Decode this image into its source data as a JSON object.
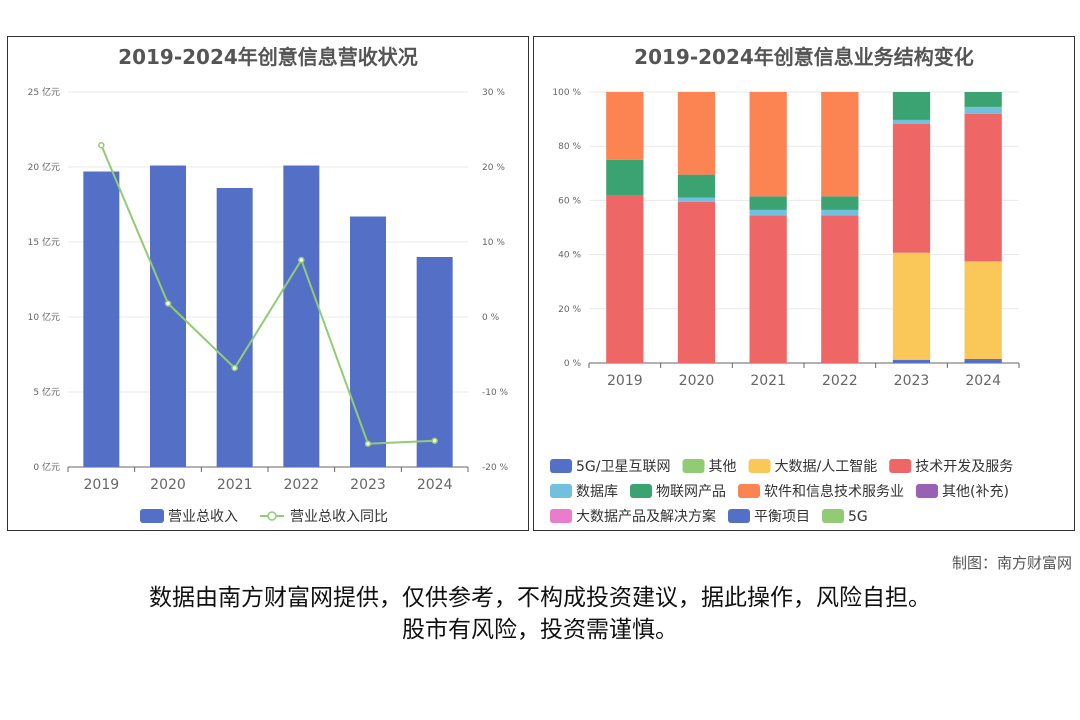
{
  "charts": {
    "left": {
      "title": "2019-2024年创意信息营收状况",
      "chart_data": {
        "type": "bar",
        "categories": [
          "2019",
          "2020",
          "2021",
          "2022",
          "2023",
          "2024"
        ],
        "series": [
          {
            "name": "营业总收入",
            "type": "bar",
            "axis": "left",
            "color": "#5470c6",
            "values": [
              19.7,
              20.1,
              18.6,
              20.1,
              16.7,
              14.0
            ]
          },
          {
            "name": "营业总收入同比",
            "type": "line",
            "axis": "right",
            "color": "#91cc75",
            "values": [
              22.9,
              1.8,
              -6.8,
              7.6,
              -16.9,
              -16.5
            ]
          }
        ],
        "y_left": {
          "min": 0,
          "max": 25,
          "step": 5,
          "unit": " 亿元"
        },
        "y_right": {
          "min": -20,
          "max": 30,
          "step": 10,
          "unit": " %"
        },
        "legend_position": "bottom",
        "grid": true
      }
    },
    "right": {
      "title": "2019-2024年创意信息业务结构变化",
      "chart_data": {
        "type": "bar",
        "stacked": true,
        "categories": [
          "2019",
          "2020",
          "2021",
          "2022",
          "2023",
          "2024"
        ],
        "y": {
          "min": 0,
          "max": 100,
          "step": 20,
          "unit": " %"
        },
        "series": [
          {
            "name": "5G/卫星互联网",
            "color": "#5470c6",
            "values": [
              0,
              0,
              0,
              0,
              1.2,
              1.5
            ]
          },
          {
            "name": "其他",
            "color": "#91cc75",
            "values": [
              0,
              0,
              0,
              0,
              0,
              0
            ]
          },
          {
            "name": "大数据/人工智能",
            "color": "#fac858",
            "values": [
              0,
              0,
              0,
              0,
              39.5,
              36.0
            ]
          },
          {
            "name": "技术开发及服务",
            "color": "#ee6666",
            "values": [
              62.0,
              59.5,
              54.5,
              54.5,
              47.5,
              54.5
            ]
          },
          {
            "name": "数据库",
            "color": "#73c0de",
            "values": [
              0,
              1.5,
              2.0,
              2.0,
              1.5,
              2.5
            ]
          },
          {
            "name": "物联网产品",
            "color": "#3ba272",
            "values": [
              13.0,
              8.5,
              5.0,
              5.0,
              10.3,
              5.5
            ]
          },
          {
            "name": "软件和信息技术服务业",
            "color": "#fc8452",
            "values": [
              25.0,
              30.5,
              38.5,
              38.5,
              0,
              0
            ]
          },
          {
            "name": "其他(补充)",
            "color": "#9a60b4",
            "values": [
              0,
              0,
              0,
              0,
              0,
              0
            ]
          },
          {
            "name": "大数据产品及解决方案",
            "color": "#ea7ccc",
            "values": [
              0,
              0,
              0,
              0,
              0,
              0
            ]
          },
          {
            "name": "平衡项目",
            "color": "#5470c6",
            "values": [
              0,
              0,
              0,
              0,
              0,
              0
            ]
          },
          {
            "name": "5G",
            "color": "#91cc75",
            "values": [
              0,
              0,
              0,
              0,
              0,
              0
            ]
          }
        ],
        "legend_position": "bottom"
      }
    }
  },
  "credit": "制图：南方财富网",
  "disclaimer": {
    "line1": "数据由南方财富网提供，仅供参考，不构成投资建议，据此操作，风险自担。",
    "line2": "股市有风险，投资需谨慎。"
  }
}
